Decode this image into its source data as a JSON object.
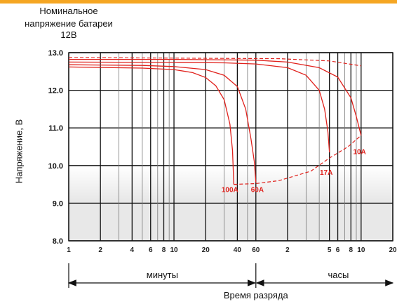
{
  "header": {
    "line1": "Номинальное",
    "line2": "напряжение батареи",
    "line3": "12В"
  },
  "colors": {
    "curve": "#e0211c",
    "accent_bar": "#f5a623"
  },
  "chart_data": {
    "type": "line",
    "title": "",
    "ylabel": "Напряжение, В",
    "xlabel": "Время разряда",
    "x_scale": "log",
    "x_unit": "minutes",
    "xlim": [
      1,
      1200
    ],
    "ylim": [
      8.0,
      13.0
    ],
    "y_ticks": [
      "8.0",
      "9.0",
      "10.0",
      "11.0",
      "12.0",
      "13.0"
    ],
    "x_tick_labels": [
      {
        "label": "1",
        "minutes": 1
      },
      {
        "label": "2",
        "minutes": 2
      },
      {
        "label": "4",
        "minutes": 4
      },
      {
        "label": "6",
        "minutes": 6
      },
      {
        "label": "8",
        "minutes": 8
      },
      {
        "label": "10",
        "minutes": 10
      },
      {
        "label": "20",
        "minutes": 20
      },
      {
        "label": "40",
        "minutes": 40
      },
      {
        "label": "60",
        "minutes": 60
      },
      {
        "label": "2",
        "minutes": 120
      },
      {
        "label": "5",
        "minutes": 300
      },
      {
        "label": "6",
        "minutes": 360
      },
      {
        "label": "8",
        "minutes": 480
      },
      {
        "label": "10",
        "minutes": 600
      },
      {
        "label": "20",
        "minutes": 1200
      }
    ],
    "minor_gridlines_minutes": [
      3,
      5,
      7,
      9,
      30,
      50,
      180,
      240,
      420,
      540
    ],
    "grid": true,
    "time_ranges": [
      {
        "label": "минуты",
        "from": 1,
        "to": 60
      },
      {
        "label": "часы",
        "from": 60,
        "to": 1200
      }
    ],
    "series": [
      {
        "name": "100A",
        "points": [
          [
            1,
            12.62
          ],
          [
            5,
            12.59
          ],
          [
            10,
            12.55
          ],
          [
            15,
            12.47
          ],
          [
            20,
            12.34
          ],
          [
            25,
            12.12
          ],
          [
            30,
            11.75
          ],
          [
            34,
            11.1
          ],
          [
            36,
            10.4
          ],
          [
            37,
            9.5
          ]
        ],
        "end_cutoff": [
          40,
          9.5
        ]
      },
      {
        "name": "60A",
        "points": [
          [
            1,
            12.68
          ],
          [
            5,
            12.66
          ],
          [
            10,
            12.63
          ],
          [
            20,
            12.55
          ],
          [
            30,
            12.4
          ],
          [
            40,
            12.1
          ],
          [
            48,
            11.5
          ],
          [
            54,
            10.7
          ],
          [
            58,
            10.1
          ],
          [
            60,
            9.55
          ]
        ]
      },
      {
        "name": "17A",
        "points": [
          [
            1,
            12.75
          ],
          [
            10,
            12.74
          ],
          [
            30,
            12.73
          ],
          [
            60,
            12.7
          ],
          [
            120,
            12.6
          ],
          [
            180,
            12.4
          ],
          [
            240,
            12.0
          ],
          [
            270,
            11.5
          ],
          [
            290,
            10.9
          ],
          [
            300,
            10.35
          ]
        ]
      },
      {
        "name": "10A",
        "points": [
          [
            1,
            12.82
          ],
          [
            10,
            12.82
          ],
          [
            60,
            12.8
          ],
          [
            120,
            12.75
          ],
          [
            240,
            12.6
          ],
          [
            360,
            12.35
          ],
          [
            480,
            11.8
          ],
          [
            540,
            11.3
          ],
          [
            600,
            10.8
          ]
        ]
      }
    ],
    "cutoff_line": {
      "style": "dashed",
      "points": [
        [
          37,
          9.5
        ],
        [
          60,
          9.52
        ],
        [
          100,
          9.6
        ],
        [
          200,
          9.85
        ],
        [
          300,
          10.2
        ],
        [
          450,
          10.5
        ],
        [
          600,
          10.8
        ]
      ]
    },
    "nominal_line": {
      "style": "dashed",
      "points": [
        [
          1,
          12.87
        ],
        [
          100,
          12.84
        ],
        [
          300,
          12.78
        ],
        [
          600,
          12.65
        ]
      ]
    }
  }
}
